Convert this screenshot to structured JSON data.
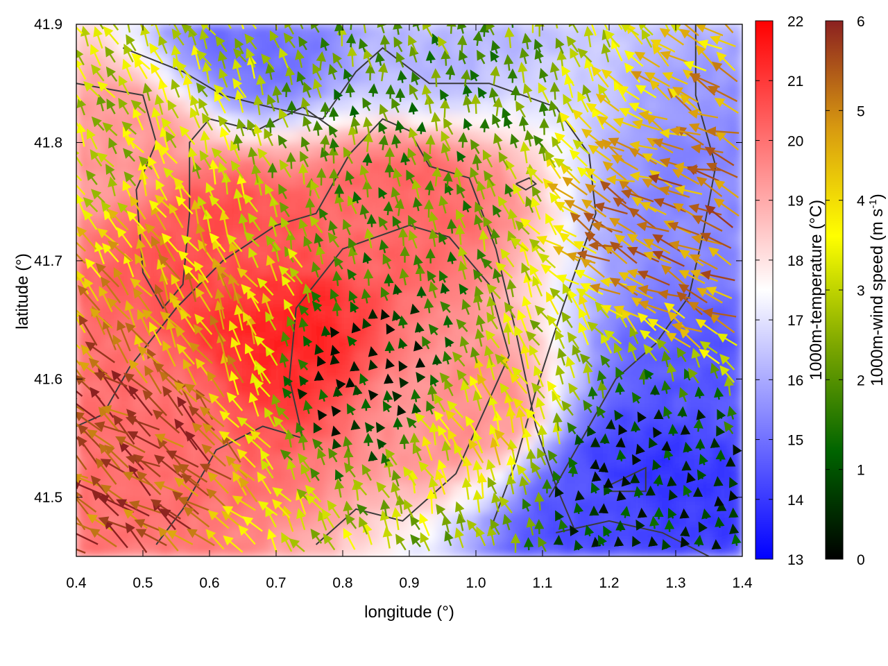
{
  "chart_data": {
    "type": "heatmap",
    "xlabel": "longitude (°)",
    "ylabel": "latitude (°)",
    "xlim": [
      0.4,
      1.4
    ],
    "ylim": [
      41.45,
      41.9
    ],
    "x_ticks": [
      "0.4",
      "0.5",
      "0.6",
      "0.7",
      "0.8",
      "0.9",
      "1.0",
      "1.1",
      "1.2",
      "1.3",
      "1.4"
    ],
    "y_ticks": [
      "41.5",
      "41.6",
      "41.7",
      "41.8",
      "41.9"
    ],
    "grid": false,
    "legend": "none",
    "overlays": [
      "wind vectors colored by speed",
      "dark grey contour lines"
    ],
    "temperature_colorbar": {
      "label": "1000m-temperature (°C)",
      "range": [
        13,
        22
      ],
      "ticks": [
        "13",
        "14",
        "15",
        "16",
        "17",
        "18",
        "19",
        "20",
        "21",
        "22"
      ],
      "colors": [
        "#0000ff",
        "#ffffff",
        "#ff0000"
      ],
      "midpoint": 17.5
    },
    "wind_colorbar": {
      "label_main": "1000m-wind speed (m s",
      "label_sup": "-1",
      "label_end": ")",
      "range": [
        0,
        6
      ],
      "ticks": [
        "0",
        "1",
        "2",
        "3",
        "4",
        "5",
        "6"
      ],
      "colors": [
        "#000000",
        "#006400",
        "#7fa800",
        "#ffff00",
        "#d89a10",
        "#8b2020"
      ]
    },
    "temperature_field_features": [
      {
        "lon": 0.7,
        "lat": 41.64,
        "temp": 21.3
      },
      {
        "lon": 0.62,
        "lat": 41.72,
        "temp": 20.6
      },
      {
        "lon": 0.88,
        "lat": 41.75,
        "temp": 20.2
      },
      {
        "lon": 0.5,
        "lat": 41.58,
        "temp": 20.0
      },
      {
        "lon": 0.98,
        "lat": 41.58,
        "temp": 19.5
      },
      {
        "lon": 0.45,
        "lat": 41.8,
        "temp": 19.3
      },
      {
        "lon": 1.27,
        "lat": 41.52,
        "temp": 13.9
      },
      {
        "lon": 1.2,
        "lat": 41.49,
        "temp": 14.4
      },
      {
        "lon": 1.34,
        "lat": 41.6,
        "temp": 14.6
      },
      {
        "lon": 1.38,
        "lat": 41.75,
        "temp": 15.4
      },
      {
        "lon": 0.68,
        "lat": 41.885,
        "temp": 15.0
      },
      {
        "lon": 0.92,
        "lat": 41.885,
        "temp": 16.2
      }
    ],
    "wind_field_features": [
      {
        "lon": 0.5,
        "lat": 41.55,
        "speed": 5.7,
        "dir_deg": 145
      },
      {
        "lon": 0.6,
        "lat": 41.62,
        "speed": 4.6,
        "dir_deg": 120
      },
      {
        "lon": 0.82,
        "lat": 41.6,
        "speed": 0.5,
        "dir_deg": 110
      },
      {
        "lon": 1.2,
        "lat": 41.52,
        "speed": 0.4,
        "dir_deg": 100
      },
      {
        "lon": 1.35,
        "lat": 41.72,
        "speed": 5.0,
        "dir_deg": 160
      },
      {
        "lon": 1.05,
        "lat": 41.55,
        "speed": 3.8,
        "dir_deg": 115
      },
      {
        "lon": 0.9,
        "lat": 41.8,
        "speed": 2.0,
        "dir_deg": 100
      },
      {
        "lon": 0.45,
        "lat": 41.85,
        "speed": 3.0,
        "dir_deg": 120
      }
    ],
    "contours": [
      [
        [
          0.52,
          41.46
        ],
        [
          0.56,
          41.49
        ],
        [
          0.61,
          41.54
        ],
        [
          0.68,
          41.56
        ],
        [
          0.74,
          41.55
        ],
        [
          0.72,
          41.6
        ],
        [
          0.73,
          41.66
        ],
        [
          0.8,
          41.71
        ],
        [
          0.9,
          41.73
        ],
        [
          0.96,
          41.72
        ],
        [
          1.02,
          41.68
        ],
        [
          1.05,
          41.62
        ],
        [
          1.01,
          41.57
        ],
        [
          0.97,
          41.52
        ],
        [
          0.89,
          41.48
        ],
        [
          0.82,
          41.49
        ],
        [
          0.76,
          41.46
        ]
      ],
      [
        [
          0.4,
          41.56
        ],
        [
          0.44,
          41.57
        ],
        [
          0.48,
          41.61
        ],
        [
          0.55,
          41.66
        ],
        [
          0.62,
          41.7
        ],
        [
          0.7,
          41.73
        ],
        [
          0.76,
          41.74
        ],
        [
          0.81,
          41.79
        ],
        [
          0.86,
          41.82
        ],
        [
          0.9,
          41.81
        ],
        [
          0.93,
          41.78
        ],
        [
          0.99,
          41.77
        ],
        [
          1.03,
          41.71
        ],
        [
          1.06,
          41.64
        ],
        [
          1.09,
          41.56
        ],
        [
          1.12,
          41.51
        ],
        [
          1.15,
          41.47
        ]
      ],
      [
        [
          0.47,
          41.88
        ],
        [
          0.56,
          41.86
        ],
        [
          0.62,
          41.84
        ],
        [
          0.69,
          41.83
        ],
        [
          0.77,
          41.82
        ],
        [
          0.82,
          41.86
        ],
        [
          0.86,
          41.88
        ],
        [
          0.93,
          41.85
        ],
        [
          1.02,
          41.85
        ],
        [
          1.12,
          41.83
        ],
        [
          1.17,
          41.79
        ],
        [
          1.18,
          41.74
        ],
        [
          1.13,
          41.66
        ],
        [
          1.09,
          41.59
        ],
        [
          1.06,
          41.53
        ],
        [
          1.02,
          41.47
        ]
      ],
      [
        [
          0.4,
          41.85
        ],
        [
          0.5,
          41.84
        ],
        [
          0.52,
          41.8
        ],
        [
          0.49,
          41.76
        ],
        [
          0.5,
          41.69
        ],
        [
          0.53,
          41.66
        ],
        [
          0.56,
          41.68
        ],
        [
          0.57,
          41.74
        ],
        [
          0.57,
          41.8
        ],
        [
          0.6,
          41.82
        ],
        [
          0.67,
          41.81
        ],
        [
          0.74,
          41.83
        ],
        [
          0.79,
          41.81
        ]
      ],
      [
        [
          1.33,
          41.9
        ],
        [
          1.33,
          41.84
        ],
        [
          1.36,
          41.78
        ],
        [
          1.34,
          41.72
        ],
        [
          1.32,
          41.67
        ],
        [
          1.27,
          41.63
        ],
        [
          1.21,
          41.6
        ],
        [
          1.17,
          41.56
        ],
        [
          1.14,
          41.53
        ],
        [
          1.11,
          41.5
        ]
      ],
      [
        [
          1.12,
          41.47
        ],
        [
          1.2,
          41.48
        ],
        [
          1.28,
          41.47
        ],
        [
          1.35,
          41.45
        ]
      ],
      [
        [
          1.2,
          41.505
        ],
        [
          1.255,
          41.505
        ],
        [
          1.255,
          41.525
        ],
        [
          1.2,
          41.51
        ]
      ],
      [
        [
          1.06,
          41.765
        ],
        [
          1.08,
          41.77
        ],
        [
          1.09,
          41.765
        ],
        [
          1.075,
          41.76
        ],
        [
          1.06,
          41.765
        ]
      ]
    ]
  }
}
